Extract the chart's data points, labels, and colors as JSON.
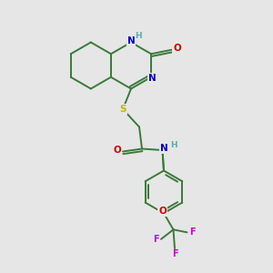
{
  "bg_color": "#e6e6e6",
  "bond_color": "#3a7a3a",
  "atom_colors": {
    "N": "#0000cc",
    "O": "#cc0000",
    "S": "#bbbb00",
    "F": "#cc00cc",
    "C": "#3a7a3a",
    "H": "#5aadad"
  }
}
